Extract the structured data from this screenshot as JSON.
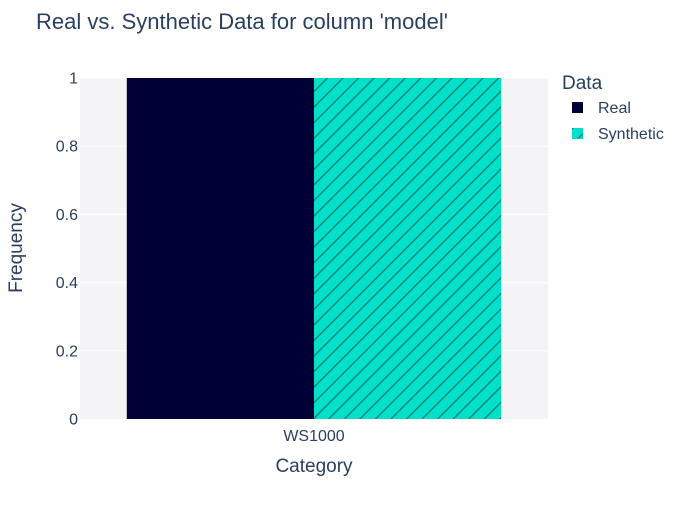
{
  "chart_data": {
    "type": "bar",
    "title": "Real vs. Synthetic Data for column 'model'",
    "xlabel": "Category",
    "ylabel": "Frequency",
    "categories": [
      "WS1000"
    ],
    "series": [
      {
        "name": "Real",
        "values": [
          1
        ],
        "color": "#000036",
        "pattern": "solid"
      },
      {
        "name": "Synthetic",
        "values": [
          1
        ],
        "color": "#01E0C9",
        "pattern": "diagonal-hatch"
      }
    ],
    "ylim": [
      0,
      1
    ],
    "yticks": [
      "0",
      "0.2",
      "0.4",
      "0.6",
      "0.8",
      "1"
    ],
    "grid": true,
    "legend_title": "Data",
    "legend_position": "top-right",
    "colors": {
      "plot_background": "#f4f4f7",
      "grid": "#ffffff",
      "text": "#2a3f5f"
    }
  }
}
